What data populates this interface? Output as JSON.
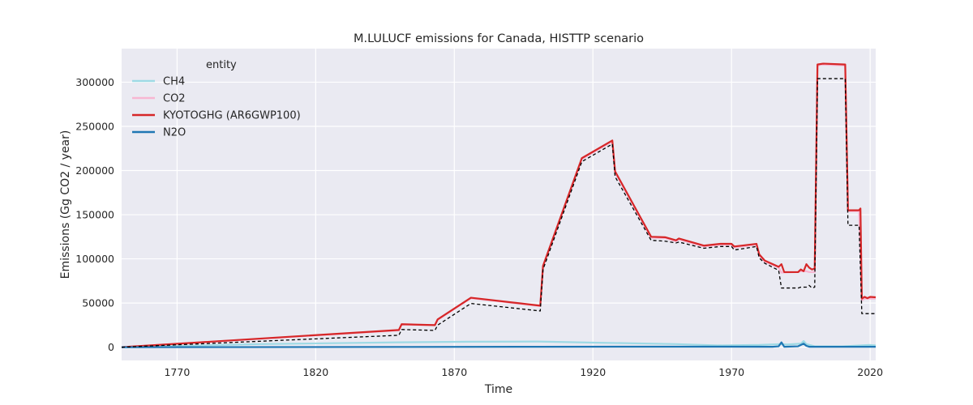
{
  "chart_data": {
    "type": "line",
    "title": "M.LULUCF emissions for Canada, HISTTP scenario",
    "xlabel": "Time",
    "ylabel": "Emissions (Gg CO2 / year)",
    "xlim": [
      1750,
      2022
    ],
    "ylim": [
      -15000,
      338000
    ],
    "xticks": [
      1770,
      1820,
      1870,
      1920,
      1970,
      2020
    ],
    "yticks": [
      0,
      50000,
      100000,
      150000,
      200000,
      250000,
      300000
    ],
    "grid": true,
    "legend": {
      "title": "entity",
      "position": "top-left"
    },
    "series": [
      {
        "name": "CH4",
        "color": "#9edae5",
        "width": 2.2,
        "points": [
          [
            1750,
            0
          ],
          [
            1800,
            3500
          ],
          [
            1850,
            5500
          ],
          [
            1875,
            6200
          ],
          [
            1900,
            6400
          ],
          [
            1920,
            5200
          ],
          [
            1950,
            3500
          ],
          [
            1965,
            2000
          ],
          [
            1980,
            2500
          ],
          [
            1988,
            3500
          ],
          [
            1990,
            3000
          ],
          [
            1995,
            4000
          ],
          [
            1996,
            7000
          ],
          [
            1997,
            3500
          ],
          [
            2000,
            1000
          ],
          [
            2010,
            1000
          ],
          [
            2020,
            2500
          ],
          [
            2022,
            2000
          ]
        ]
      },
      {
        "name": "CO2",
        "color": "#f7b6d2",
        "width": 2.2,
        "points": [
          [
            1750,
            0
          ],
          [
            1850,
            19000
          ],
          [
            1851,
            25500
          ],
          [
            1863,
            25000
          ],
          [
            1864,
            31000
          ],
          [
            1876,
            55500
          ],
          [
            1901,
            46500
          ],
          [
            1902,
            91000
          ],
          [
            1916,
            213000
          ],
          [
            1927,
            233000
          ],
          [
            1928,
            198000
          ],
          [
            1941,
            124000
          ],
          [
            1946,
            123500
          ],
          [
            1950,
            120000
          ],
          [
            1951,
            122000
          ],
          [
            1960,
            114000
          ],
          [
            1966,
            116000
          ],
          [
            1970,
            116000
          ],
          [
            1971,
            113000
          ],
          [
            1979,
            116000
          ],
          [
            1980,
            104000
          ],
          [
            1982,
            97000
          ],
          [
            1987,
            90000
          ],
          [
            1988,
            84500
          ],
          [
            1994,
            85000
          ],
          [
            1995,
            86000
          ],
          [
            1997,
            86000
          ],
          [
            1998,
            85000
          ],
          [
            2000,
            85000
          ],
          [
            2001,
            318000
          ],
          [
            2002,
            320000
          ],
          [
            2011,
            319000
          ],
          [
            2012,
            154000
          ],
          [
            2016,
            154000
          ],
          [
            2017,
            53000
          ],
          [
            2018,
            55000
          ],
          [
            2022,
            55000
          ]
        ]
      },
      {
        "name": "KYOTOGHG (AR6GWP100)",
        "color": "#d62728",
        "width": 2.2,
        "points": [
          [
            1750,
            0
          ],
          [
            1850,
            19500
          ],
          [
            1851,
            26000
          ],
          [
            1863,
            25000
          ],
          [
            1864,
            31500
          ],
          [
            1876,
            56000
          ],
          [
            1901,
            47000
          ],
          [
            1902,
            92000
          ],
          [
            1916,
            214000
          ],
          [
            1927,
            234000
          ],
          [
            1928,
            199000
          ],
          [
            1941,
            125000
          ],
          [
            1946,
            124500
          ],
          [
            1950,
            121000
          ],
          [
            1951,
            123000
          ],
          [
            1960,
            115000
          ],
          [
            1966,
            117000
          ],
          [
            1970,
            117000
          ],
          [
            1971,
            114000
          ],
          [
            1979,
            117000
          ],
          [
            1980,
            105000
          ],
          [
            1982,
            98000
          ],
          [
            1987,
            91000
          ],
          [
            1988,
            94000
          ],
          [
            1989,
            85000
          ],
          [
            1994,
            85000
          ],
          [
            1995,
            88000
          ],
          [
            1996,
            86000
          ],
          [
            1997,
            94000
          ],
          [
            1998,
            90000
          ],
          [
            1999,
            88000
          ],
          [
            2000,
            89000
          ],
          [
            2001,
            320000
          ],
          [
            2003,
            321000
          ],
          [
            2011,
            320000
          ],
          [
            2012,
            155000
          ],
          [
            2016,
            155000
          ],
          [
            2016.5,
            157000
          ],
          [
            2017,
            55000
          ],
          [
            2018,
            57000
          ],
          [
            2019,
            55500
          ],
          [
            2020,
            57000
          ],
          [
            2022,
            56500
          ]
        ]
      },
      {
        "name": "N2O",
        "color": "#1f77b4",
        "width": 2.2,
        "points": [
          [
            1750,
            0
          ],
          [
            1850,
            300
          ],
          [
            1900,
            500
          ],
          [
            1950,
            600
          ],
          [
            1985,
            500
          ],
          [
            1987,
            1000
          ],
          [
            1988,
            5500
          ],
          [
            1989,
            500
          ],
          [
            1994,
            1000
          ],
          [
            1995,
            2500
          ],
          [
            1996,
            4000
          ],
          [
            1997,
            1500
          ],
          [
            1998,
            500
          ],
          [
            2022,
            500
          ]
        ]
      },
      {
        "name": "",
        "color": "#000000",
        "width": 1.3,
        "dash": "4,3",
        "points": [
          [
            1750,
            0
          ],
          [
            1850,
            13500
          ],
          [
            1851,
            20000
          ],
          [
            1863,
            19000
          ],
          [
            1864,
            25000
          ],
          [
            1876,
            49500
          ],
          [
            1901,
            41000
          ],
          [
            1902,
            88000
          ],
          [
            1916,
            210000
          ],
          [
            1927,
            230000
          ],
          [
            1928,
            193000
          ],
          [
            1941,
            121000
          ],
          [
            1946,
            120000
          ],
          [
            1950,
            118000
          ],
          [
            1951,
            119000
          ],
          [
            1960,
            112000
          ],
          [
            1966,
            114000
          ],
          [
            1970,
            114000
          ],
          [
            1971,
            110000
          ],
          [
            1979,
            114000
          ],
          [
            1980,
            101000
          ],
          [
            1982,
            95000
          ],
          [
            1987,
            87000
          ],
          [
            1988,
            67000
          ],
          [
            1994,
            67000
          ],
          [
            1995,
            68000
          ],
          [
            1997,
            68000
          ],
          [
            1998,
            70000
          ],
          [
            1999,
            67000
          ],
          [
            2000,
            68000
          ],
          [
            2001,
            304000
          ],
          [
            2011,
            304000
          ],
          [
            2012,
            138000
          ],
          [
            2016,
            138000
          ],
          [
            2017,
            38000
          ],
          [
            2022,
            38000
          ]
        ]
      }
    ]
  }
}
